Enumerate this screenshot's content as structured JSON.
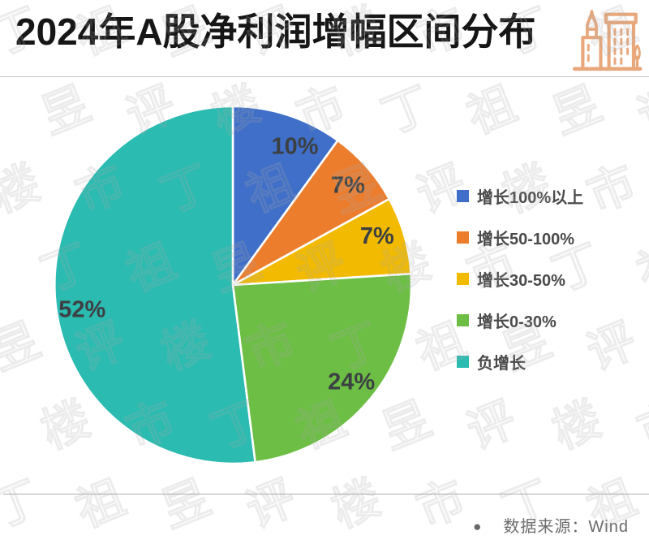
{
  "header": {
    "title": "2024年A股净利润增幅区间分布",
    "icon_color": "#E8A87C"
  },
  "chart_data": {
    "type": "pie",
    "title": "2024年A股净利润增幅区间分布",
    "labels": [
      "增长100%以上",
      "增长50-100%",
      "增长30-50%",
      "增长0-30%",
      "负增长"
    ],
    "values": [
      10,
      7,
      7,
      24,
      52
    ],
    "value_labels": [
      "10%",
      "7%",
      "7%",
      "24%",
      "52%"
    ],
    "colors": [
      "#3F6FC8",
      "#EC7D2D",
      "#F2BA00",
      "#6CBE45",
      "#2BBBB1"
    ],
    "start_angle_deg": 0,
    "direction": "clockwise",
    "legend_position": "right",
    "label_color": "#3C4043",
    "label_angles_deg": [
      24,
      49,
      71,
      129,
      261
    ],
    "label_radius": 188,
    "slice_stroke": "#ffffff"
  },
  "footer": {
    "bullet": "●",
    "source_label": "数据来源：Wind"
  },
  "watermark": {
    "text": "丁祖昱评楼市"
  }
}
